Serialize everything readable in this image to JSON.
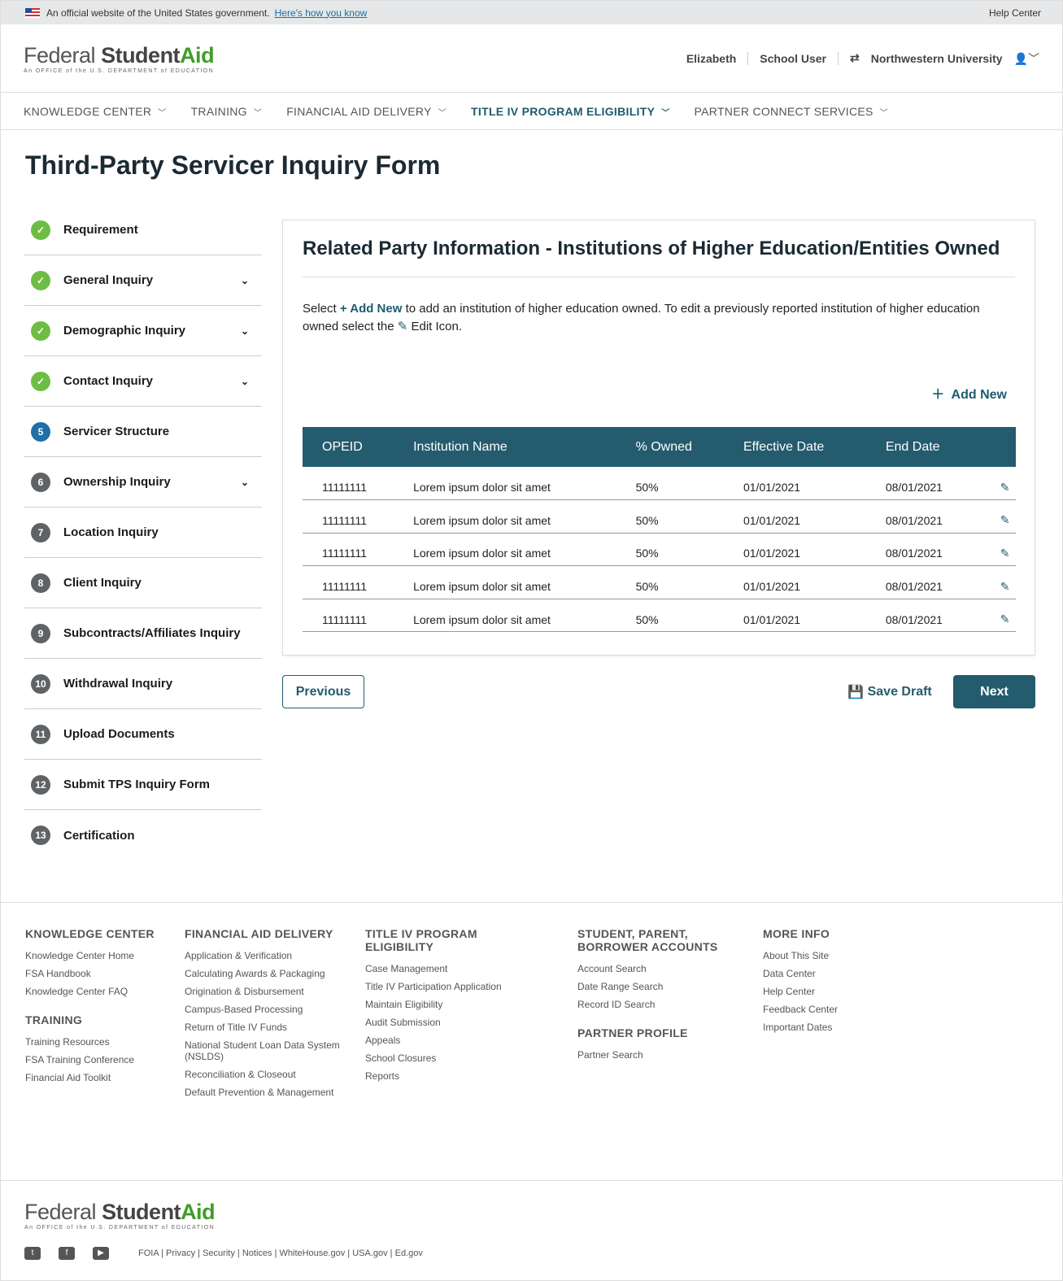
{
  "banner": {
    "text": "An official website of the United States government.",
    "link": "Here's how you know",
    "help": "Help Center"
  },
  "logo": {
    "federal": "Federal",
    "student": "Student",
    "aid": "Aid",
    "tagline": "An OFFICE of the U.S. DEPARTMENT of EDUCATION"
  },
  "user": {
    "name": "Elizabeth",
    "role": "School User",
    "org": "Northwestern University"
  },
  "nav": [
    "KNOWLEDGE CENTER",
    "TRAINING",
    "FINANCIAL AID DELIVERY",
    "TITLE IV PROGRAM ELIGIBILITY",
    "PARTNER CONNECT SERVICES"
  ],
  "page_title": "Third-Party Servicer Inquiry Form",
  "steps": [
    {
      "badge": "✓",
      "label": "Requirement",
      "status": "done",
      "chev": false
    },
    {
      "badge": "✓",
      "label": "General Inquiry",
      "status": "done",
      "chev": true
    },
    {
      "badge": "✓",
      "label": "Demographic Inquiry",
      "status": "done",
      "chev": true
    },
    {
      "badge": "✓",
      "label": "Contact Inquiry",
      "status": "done",
      "chev": true
    },
    {
      "badge": "5",
      "label": "Servicer Structure",
      "status": "current",
      "chev": false
    },
    {
      "badge": "6",
      "label": "Ownership Inquiry",
      "status": "todo",
      "chev": true
    },
    {
      "badge": "7",
      "label": "Location Inquiry",
      "status": "todo",
      "chev": false
    },
    {
      "badge": "8",
      "label": "Client Inquiry",
      "status": "todo",
      "chev": false
    },
    {
      "badge": "9",
      "label": "Subcontracts/Affiliates Inquiry",
      "status": "todo",
      "chev": false
    },
    {
      "badge": "10",
      "label": "Withdrawal Inquiry",
      "status": "todo",
      "chev": false
    },
    {
      "badge": "11",
      "label": "Upload Documents",
      "status": "todo",
      "chev": false
    },
    {
      "badge": "12",
      "label": "Submit TPS Inquiry Form",
      "status": "todo",
      "chev": false
    },
    {
      "badge": "13",
      "label": "Certification",
      "status": "todo",
      "chev": false
    }
  ],
  "card": {
    "title": "Related Party Information - Institutions of Higher Education/Entities Owned",
    "intro_1": "Select ",
    "intro_add": "+ Add New",
    "intro_2": " to add an institution of higher education owned. To edit a previously reported institution of higher education owned select the ",
    "intro_3": " Edit Icon.",
    "add_new": "Add New",
    "columns": [
      "OPEID",
      "Institution Name",
      "% Owned",
      "Effective  Date",
      "End Date"
    ],
    "rows": [
      [
        "11111111",
        "Lorem ipsum dolor sit amet",
        "50%",
        "01/01/2021",
        "08/01/2021"
      ],
      [
        "11111111",
        "Lorem ipsum dolor sit amet",
        "50%",
        "01/01/2021",
        "08/01/2021"
      ],
      [
        "11111111",
        "Lorem ipsum dolor sit amet",
        "50%",
        "01/01/2021",
        "08/01/2021"
      ],
      [
        "11111111",
        "Lorem ipsum dolor sit amet",
        "50%",
        "01/01/2021",
        "08/01/2021"
      ],
      [
        "11111111",
        "Lorem ipsum dolor sit amet",
        "50%",
        "01/01/2021",
        "08/01/2021"
      ]
    ]
  },
  "buttons": {
    "previous": "Previous",
    "save": "Save Draft",
    "next": "Next"
  },
  "footer": {
    "cols": [
      {
        "groups": [
          {
            "h": "KNOWLEDGE CENTER",
            "items": [
              "Knowledge Center Home",
              "FSA Handbook",
              "Knowledge Center FAQ"
            ]
          },
          {
            "h": "TRAINING",
            "items": [
              "Training Resources",
              "FSA Training Conference",
              "Financial Aid Toolkit"
            ]
          }
        ]
      },
      {
        "groups": [
          {
            "h": "FINANCIAL AID DELIVERY",
            "items": [
              "Application & Verification",
              "Calculating Awards & Packaging",
              "Origination & Disbursement",
              "Campus-Based Processing",
              "Return of Title IV Funds",
              "National Student Loan Data System (NSLDS)",
              "Reconciliation & Closeout",
              "Default Prevention & Management"
            ]
          }
        ]
      },
      {
        "groups": [
          {
            "h": "TITLE IV PROGRAM ELIGIBILITY",
            "items": [
              "Case Management",
              "Title IV Participation Application",
              "Maintain Eligibility",
              "Audit Submission",
              "Appeals",
              "School Closures",
              "Reports"
            ]
          }
        ]
      },
      {
        "groups": [
          {
            "h": "STUDENT, PARENT, BORROWER ACCOUNTS",
            "items": [
              "Account Search",
              "Date Range Search",
              "Record ID Search"
            ]
          },
          {
            "h": "PARTNER PROFILE",
            "items": [
              "Partner Search"
            ]
          }
        ]
      },
      {
        "groups": [
          {
            "h": "MORE INFO",
            "items": [
              "About This Site",
              "Data Center",
              "Help Center",
              "Feedback Center",
              "Important Dates"
            ]
          }
        ]
      }
    ],
    "links": [
      "FOIA",
      "Privacy",
      "Security",
      "Notices",
      "WhiteHouse.gov",
      "USA.gov",
      "Ed.gov"
    ]
  },
  "colors": {
    "primary": "#245b6e",
    "done": "#6dbd45",
    "current": "#1f6fa8",
    "logo_green": "#3f9d2a"
  }
}
